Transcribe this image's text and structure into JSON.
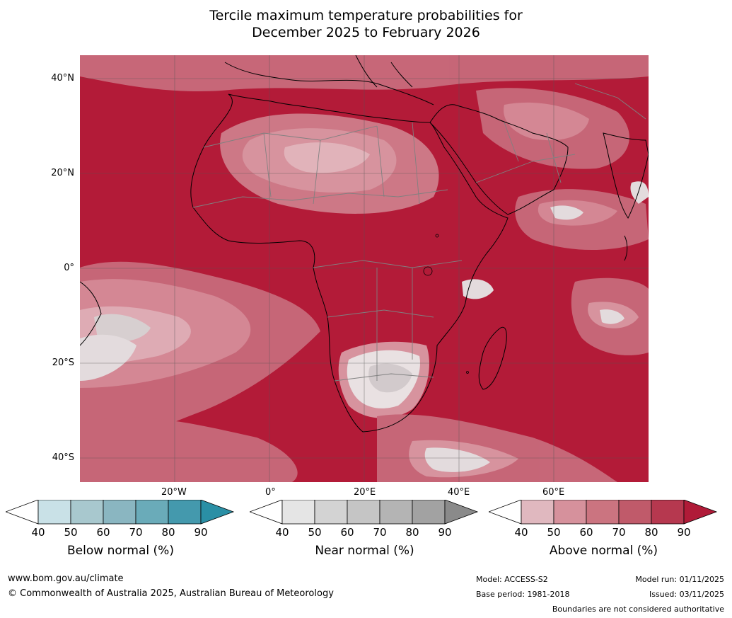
{
  "title": {
    "line1": "Tercile maximum temperature probabilities for",
    "line2": "December 2025 to February 2026"
  },
  "latitude_labels": [
    "40°N",
    "20°N",
    "0°",
    "20°S",
    "40°S"
  ],
  "longitude_labels": [
    "20°W",
    "0°",
    "20°E",
    "40°E",
    "60°E"
  ],
  "colorbars": [
    {
      "label": "Below normal (%)",
      "ticks": [
        "40",
        "50",
        "60",
        "70",
        "80",
        "90"
      ],
      "colors": [
        "#ffffff",
        "#c9e1e7",
        "#a8c8ce",
        "#8ab6c1",
        "#6aabb9",
        "#4499ad",
        "#2a8fa5"
      ]
    },
    {
      "label": "Near normal (%)",
      "ticks": [
        "40",
        "50",
        "60",
        "70",
        "80",
        "90"
      ],
      "colors": [
        "#ffffff",
        "#e5e5e5",
        "#d3d3d3",
        "#c5c5c5",
        "#b4b4b4",
        "#a2a2a2",
        "#8a8a8a"
      ]
    },
    {
      "label": "Above normal (%)",
      "ticks": [
        "40",
        "50",
        "60",
        "70",
        "80",
        "90"
      ],
      "colors": [
        "#ffffff",
        "#e0b8bf",
        "#d6919c",
        "#cb7480",
        "#c05a6a",
        "#b6384f",
        "#b01b38"
      ]
    }
  ],
  "footer": {
    "website": "www.bom.gov.au/climate",
    "copyright": "© Commonwealth of Australia 2025, Australian Bureau of Meteorology",
    "model": "Model: ACCESS-S2",
    "base_period": "Base period: 1981-2018",
    "model_run": "Model run: 01/11/2025",
    "issued": "Issued: 03/11/2025",
    "disclaimer": "Boundaries are not considered authoritative"
  }
}
